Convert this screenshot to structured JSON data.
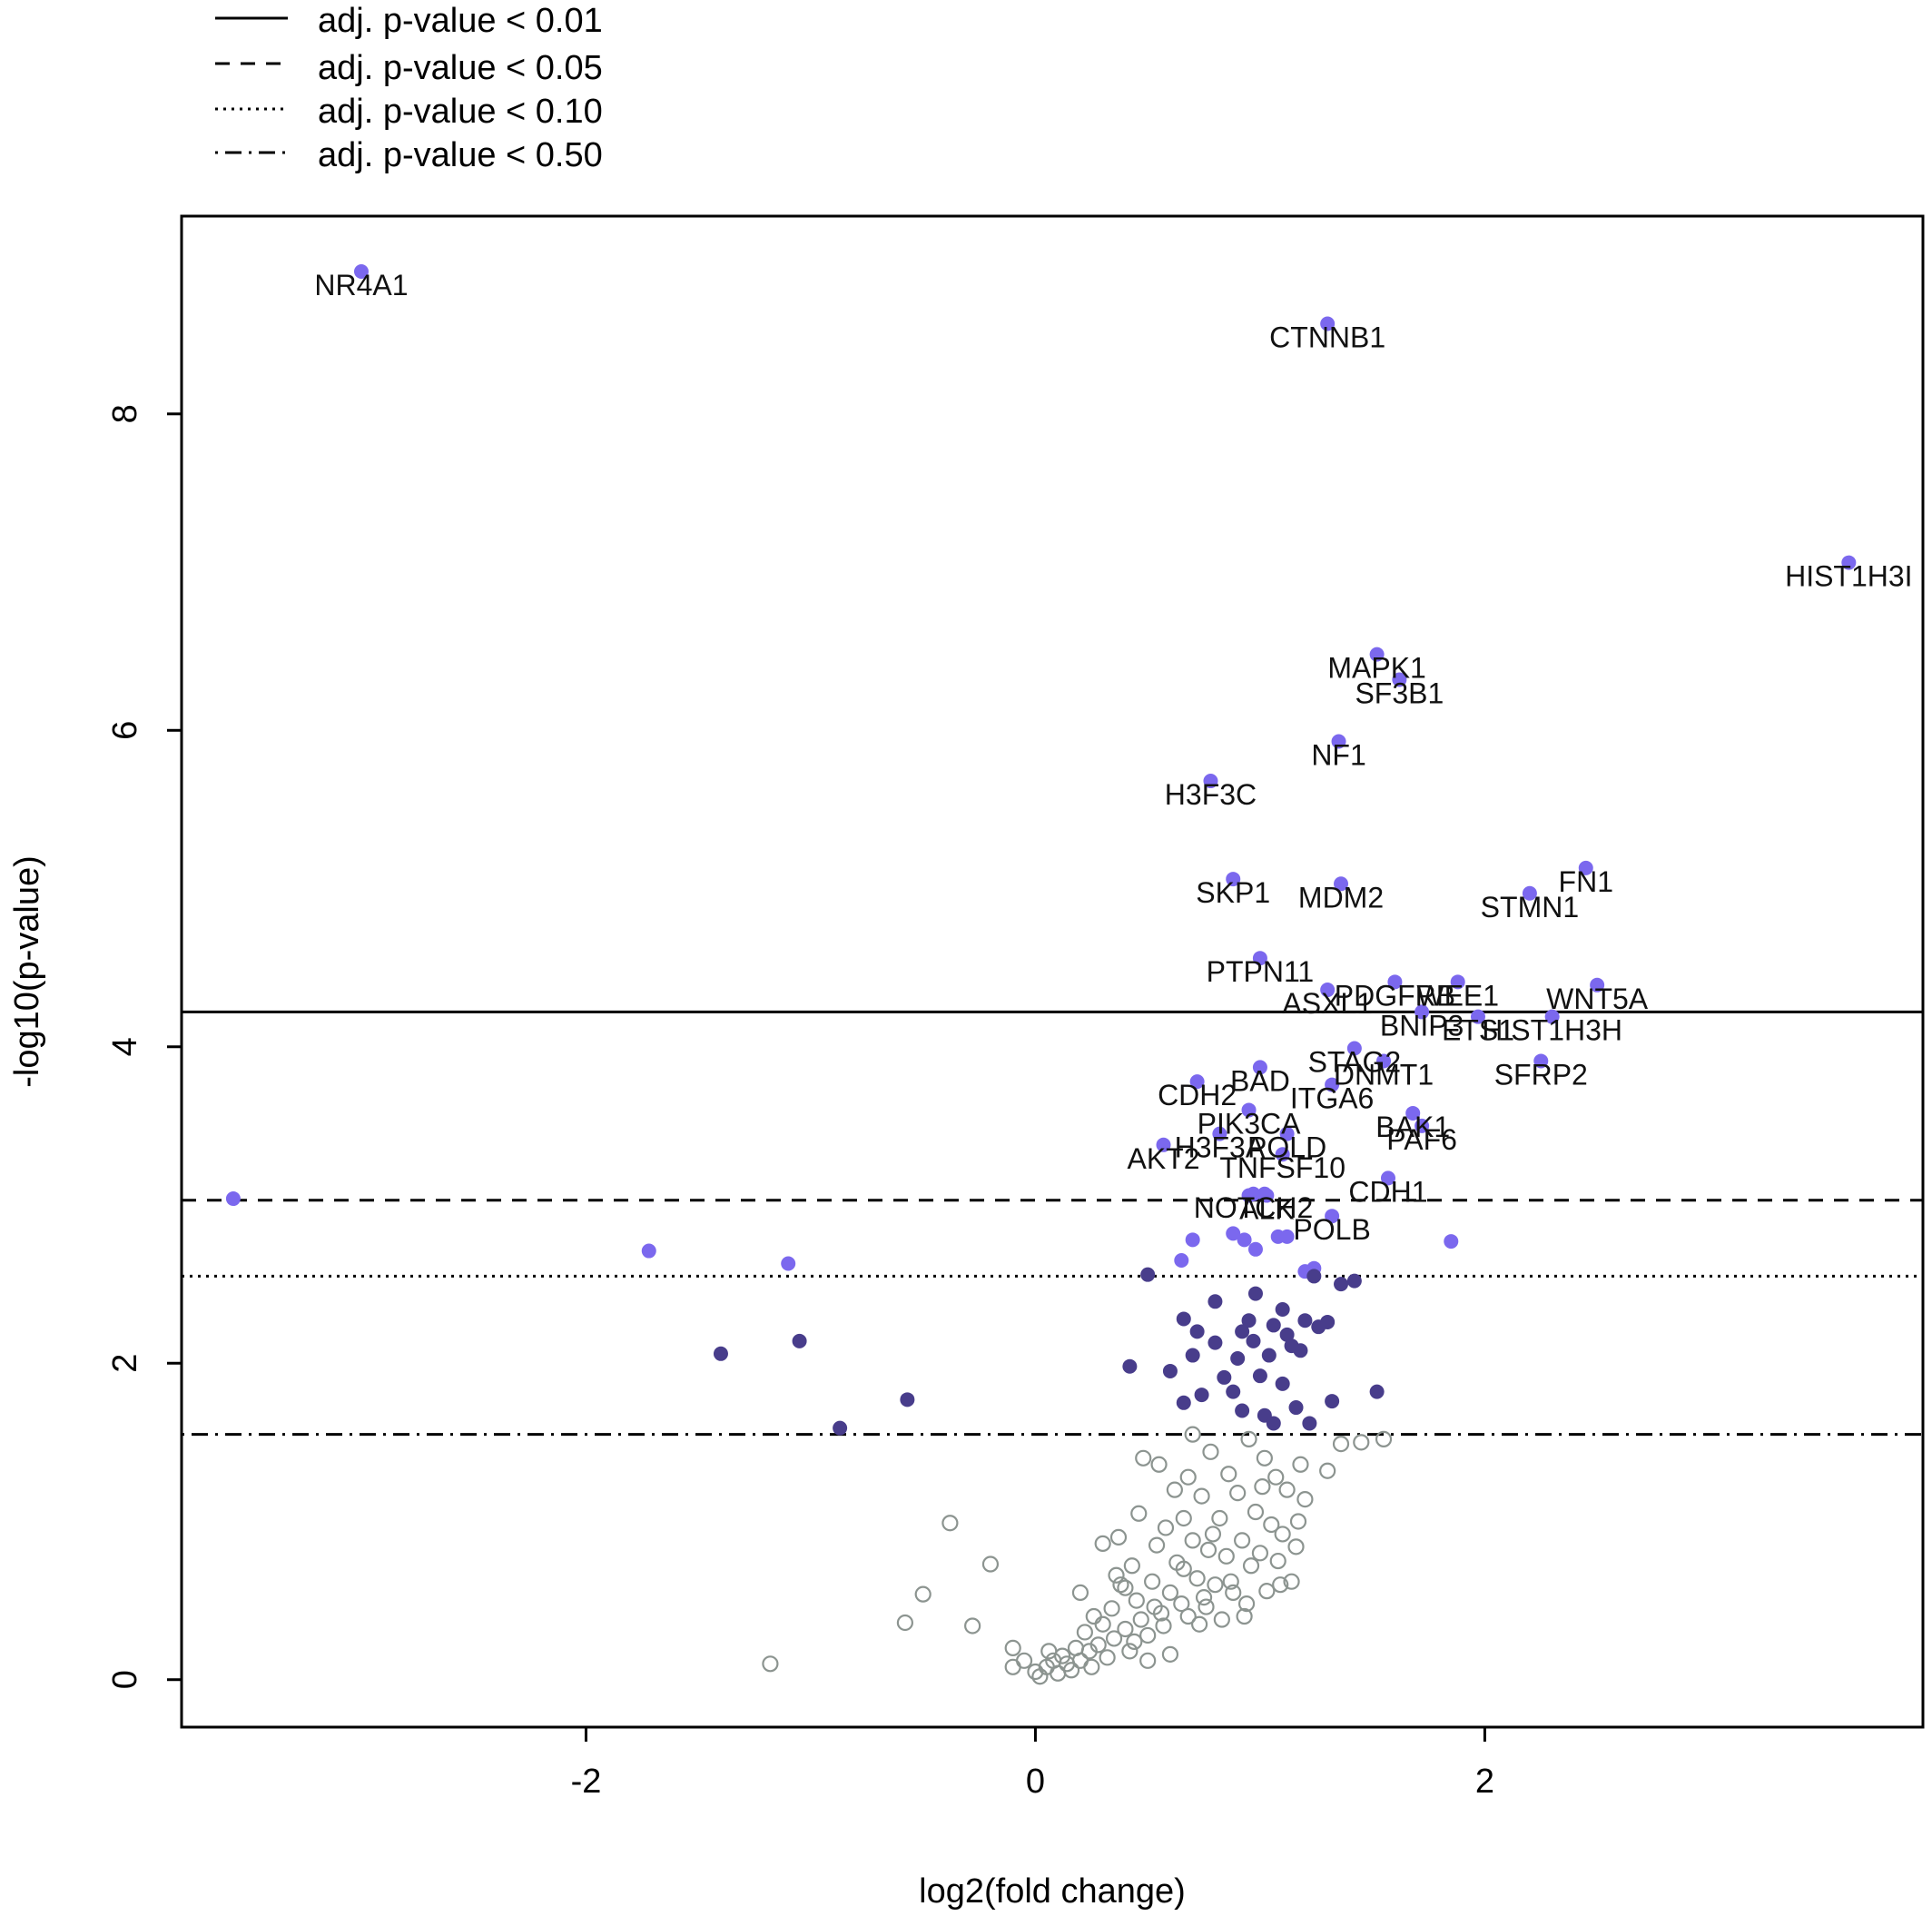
{
  "legend": [
    {
      "label": "adj. p-value < 0.01",
      "dash": "solid"
    },
    {
      "label": "adj. p-value < 0.05",
      "dash": "dashed"
    },
    {
      "label": "adj. p-value < 0.10",
      "dash": "dotted"
    },
    {
      "label": "adj. p-value < 0.50",
      "dash": "dotdash"
    }
  ],
  "colors": {
    "significant": "#7b68ee",
    "moderate": "#483d8b",
    "nonsignificant": "#8c9490",
    "axis": "#000000"
  },
  "chart_data": {
    "type": "scatter",
    "title": "",
    "xlabel": "log2(fold change)",
    "ylabel": "-log10(p-value)",
    "xlim": [
      -3.8,
      3.95
    ],
    "ylim": [
      -0.3,
      9.25
    ],
    "xticks": [
      -2,
      0,
      2
    ],
    "yticks": [
      0,
      2,
      4,
      6,
      8
    ],
    "grid": false,
    "legend_position": "top-left",
    "threshold_lines": [
      {
        "label": "adj. p-value < 0.01",
        "y": 4.22,
        "dash": "solid"
      },
      {
        "label": "adj. p-value < 0.05",
        "y": 3.03,
        "dash": "dashed"
      },
      {
        "label": "adj. p-value < 0.10",
        "y": 2.55,
        "dash": "dotted"
      },
      {
        "label": "adj. p-value < 0.50",
        "y": 1.55,
        "dash": "dotdash"
      }
    ],
    "labeled_points": [
      {
        "gene": "NR4A1",
        "x": -3.0,
        "y": 8.9
      },
      {
        "gene": "CTNNB1",
        "x": 1.3,
        "y": 8.57
      },
      {
        "gene": "HIST1H3I",
        "x": 3.62,
        "y": 7.06
      },
      {
        "gene": "MAPK1",
        "x": 1.52,
        "y": 6.48
      },
      {
        "gene": "SF3B1",
        "x": 1.62,
        "y": 6.32
      },
      {
        "gene": "NF1",
        "x": 1.35,
        "y": 5.93
      },
      {
        "gene": "H3F3C",
        "x": 0.78,
        "y": 5.68
      },
      {
        "gene": "FN1",
        "x": 2.45,
        "y": 5.13
      },
      {
        "gene": "SKP1",
        "x": 0.88,
        "y": 5.06
      },
      {
        "gene": "MDM2",
        "x": 1.36,
        "y": 5.03
      },
      {
        "gene": "STMN1",
        "x": 2.2,
        "y": 4.97
      },
      {
        "gene": "PTPN11",
        "x": 1.0,
        "y": 4.56
      },
      {
        "gene": "PDGFRB",
        "x": 1.6,
        "y": 4.41
      },
      {
        "gene": "WEE1",
        "x": 1.88,
        "y": 4.41
      },
      {
        "gene": "WNT5A",
        "x": 2.5,
        "y": 4.39
      },
      {
        "gene": "ASXL1",
        "x": 1.3,
        "y": 4.36
      },
      {
        "gene": "BNIP3",
        "x": 1.72,
        "y": 4.22
      },
      {
        "gene": "ETS1",
        "x": 1.97,
        "y": 4.19
      },
      {
        "gene": "HIST1H3H",
        "x": 2.3,
        "y": 4.19
      },
      {
        "gene": "STAG2",
        "x": 1.42,
        "y": 3.99
      },
      {
        "gene": "DNMT1",
        "x": 1.55,
        "y": 3.91
      },
      {
        "gene": "SFRP2",
        "x": 2.25,
        "y": 3.91
      },
      {
        "gene": "BAD",
        "x": 1.0,
        "y": 3.87
      },
      {
        "gene": "ITGA6",
        "x": 1.32,
        "y": 3.76
      },
      {
        "gene": "CDH2",
        "x": 0.72,
        "y": 3.78
      },
      {
        "gene": "PIK3CA",
        "x": 0.95,
        "y": 3.6
      },
      {
        "gene": "BAK1",
        "x": 1.68,
        "y": 3.58
      },
      {
        "gene": "PAF6",
        "x": 1.72,
        "y": 3.5
      },
      {
        "gene": "H3F3A",
        "x": 0.82,
        "y": 3.45
      },
      {
        "gene": "POLD",
        "x": 1.12,
        "y": 3.45
      },
      {
        "gene": "AKT2",
        "x": 0.57,
        "y": 3.38
      },
      {
        "gene": "TNFSF10",
        "x": 1.1,
        "y": 3.32
      },
      {
        "gene": "CDH1",
        "x": 1.57,
        "y": 3.17
      },
      {
        "gene": "NOTCH2",
        "x": 0.97,
        "y": 3.07
      },
      {
        "gene": "ALK",
        "x": 1.03,
        "y": 3.06
      },
      {
        "gene": "POLB",
        "x": 1.32,
        "y": 2.93
      }
    ],
    "label_texts": [
      "NR4A1",
      "CTNNB1",
      "HIST1H3I",
      "MAPK1",
      "SF3B1",
      "NF1",
      "H3F3C",
      "FN1",
      "SKP1",
      "MDM2",
      "STMN1",
      "PTPN11",
      "PDGFRB",
      "WEE1",
      "WNT5A",
      "ASXL1",
      "BNIP3",
      "ETS1",
      "HIST1H3H",
      "STAG2",
      "DNMT1",
      "SFRP2",
      "BAD",
      "ITGA6",
      "CDH2",
      "PIK3CA",
      "BAK1",
      "PAF6",
      "H3F3A",
      "POLD",
      "AKT2",
      "TNFSF10",
      "CDH1",
      "NOTCH2",
      "ALK",
      "POLB"
    ],
    "series": [
      {
        "group": "significant",
        "points": [
          [
            -3.57,
            3.04
          ],
          [
            -1.72,
            2.71
          ],
          [
            -1.1,
            2.63
          ],
          [
            0.7,
            2.78
          ],
          [
            0.65,
            2.65
          ],
          [
            0.88,
            2.82
          ],
          [
            0.93,
            2.78
          ],
          [
            0.98,
            2.72
          ],
          [
            1.08,
            2.8
          ],
          [
            1.12,
            2.8
          ],
          [
            1.2,
            2.58
          ],
          [
            1.24,
            2.6
          ],
          [
            1.85,
            2.77
          ],
          [
            0.95,
            3.06
          ],
          [
            1.02,
            3.07
          ]
        ]
      },
      {
        "group": "moderate",
        "points": [
          [
            -1.4,
            2.06
          ],
          [
            -1.05,
            2.14
          ],
          [
            -0.57,
            1.77
          ],
          [
            -0.87,
            1.59
          ],
          [
            0.42,
            1.98
          ],
          [
            0.5,
            2.56
          ],
          [
            0.6,
            1.95
          ],
          [
            0.66,
            1.75
          ],
          [
            0.66,
            2.28
          ],
          [
            0.72,
            2.2
          ],
          [
            0.74,
            1.8
          ],
          [
            0.8,
            2.39
          ],
          [
            0.8,
            2.13
          ],
          [
            0.84,
            1.91
          ],
          [
            0.88,
            1.82
          ],
          [
            0.9,
            2.03
          ],
          [
            0.92,
            2.2
          ],
          [
            0.95,
            2.27
          ],
          [
            0.97,
            2.14
          ],
          [
            0.98,
            2.44
          ],
          [
            1.0,
            1.92
          ],
          [
            1.02,
            1.67
          ],
          [
            1.04,
            2.05
          ],
          [
            1.06,
            2.24
          ],
          [
            1.1,
            2.34
          ],
          [
            1.1,
            1.87
          ],
          [
            1.12,
            2.18
          ],
          [
            1.16,
            1.72
          ],
          [
            1.18,
            2.08
          ],
          [
            1.2,
            2.27
          ],
          [
            1.22,
            1.62
          ],
          [
            1.26,
            2.23
          ],
          [
            1.3,
            2.26
          ],
          [
            1.32,
            1.76
          ],
          [
            1.36,
            2.5
          ],
          [
            1.42,
            2.52
          ],
          [
            1.52,
            1.82
          ],
          [
            1.14,
            2.11
          ],
          [
            0.7,
            2.05
          ],
          [
            0.92,
            1.7
          ],
          [
            1.24,
            2.55
          ],
          [
            1.06,
            1.62
          ]
        ]
      },
      {
        "group": "nonsignificant",
        "points": [
          [
            -1.18,
            0.1
          ],
          [
            -0.58,
            0.36
          ],
          [
            -0.5,
            0.54
          ],
          [
            -0.38,
            0.99
          ],
          [
            -0.28,
            0.34
          ],
          [
            -0.2,
            0.73
          ],
          [
            -0.1,
            0.2
          ],
          [
            -0.05,
            0.12
          ],
          [
            0.0,
            0.05
          ],
          [
            0.02,
            0.02
          ],
          [
            0.05,
            0.08
          ],
          [
            0.08,
            0.12
          ],
          [
            0.1,
            0.04
          ],
          [
            0.12,
            0.15
          ],
          [
            0.14,
            0.1
          ],
          [
            0.16,
            0.06
          ],
          [
            0.18,
            0.2
          ],
          [
            0.2,
            0.12
          ],
          [
            0.2,
            0.55
          ],
          [
            0.22,
            0.3
          ],
          [
            0.24,
            0.18
          ],
          [
            0.25,
            0.08
          ],
          [
            0.28,
            0.22
          ],
          [
            0.3,
            0.35
          ],
          [
            0.3,
            0.86
          ],
          [
            0.32,
            0.14
          ],
          [
            0.34,
            0.45
          ],
          [
            0.35,
            0.26
          ],
          [
            0.37,
            0.9
          ],
          [
            0.38,
            0.6
          ],
          [
            0.4,
            0.32
          ],
          [
            0.42,
            0.18
          ],
          [
            0.43,
            0.72
          ],
          [
            0.45,
            0.5
          ],
          [
            0.46,
            1.05
          ],
          [
            0.47,
            0.38
          ],
          [
            0.48,
            1.4
          ],
          [
            0.5,
            0.28
          ],
          [
            0.52,
            0.62
          ],
          [
            0.54,
            0.85
          ],
          [
            0.55,
            1.36
          ],
          [
            0.56,
            0.42
          ],
          [
            0.58,
            0.96
          ],
          [
            0.6,
            0.55
          ],
          [
            0.62,
            1.2
          ],
          [
            0.63,
            0.74
          ],
          [
            0.65,
            0.48
          ],
          [
            0.66,
            1.02
          ],
          [
            0.68,
            0.4
          ],
          [
            0.7,
            0.88
          ],
          [
            0.7,
            1.55
          ],
          [
            0.72,
            0.64
          ],
          [
            0.74,
            1.16
          ],
          [
            0.75,
            0.52
          ],
          [
            0.77,
            0.82
          ],
          [
            0.78,
            1.44
          ],
          [
            0.8,
            0.6
          ],
          [
            0.82,
            1.02
          ],
          [
            0.83,
            0.38
          ],
          [
            0.85,
            0.78
          ],
          [
            0.86,
            1.3
          ],
          [
            0.88,
            0.55
          ],
          [
            0.9,
            1.18
          ],
          [
            0.92,
            0.88
          ],
          [
            0.93,
            0.4
          ],
          [
            0.95,
            1.52
          ],
          [
            0.96,
            0.72
          ],
          [
            0.98,
            1.06
          ],
          [
            1.0,
            0.8
          ],
          [
            1.02,
            1.4
          ],
          [
            1.03,
            0.56
          ],
          [
            1.05,
            0.98
          ],
          [
            1.07,
            1.28
          ],
          [
            1.08,
            0.75
          ],
          [
            1.1,
            0.92
          ],
          [
            1.12,
            1.2
          ],
          [
            1.14,
            0.62
          ],
          [
            1.16,
            0.84
          ],
          [
            1.18,
            1.36
          ],
          [
            1.2,
            1.14
          ],
          [
            1.3,
            1.32
          ],
          [
            1.36,
            1.49
          ],
          [
            1.45,
            1.5
          ],
          [
            1.55,
            1.52
          ],
          [
            -0.1,
            0.08
          ],
          [
            0.06,
            0.18
          ],
          [
            0.26,
            0.4
          ],
          [
            0.36,
            0.66
          ],
          [
            0.44,
            0.24
          ],
          [
            0.53,
            0.46
          ],
          [
            0.6,
            0.16
          ],
          [
            0.66,
            0.7
          ],
          [
            0.73,
            0.35
          ],
          [
            0.79,
            0.92
          ],
          [
            0.87,
            0.62
          ],
          [
            0.94,
            0.48
          ],
          [
            1.01,
            1.22
          ],
          [
            1.09,
            0.6
          ],
          [
            1.17,
            1.0
          ],
          [
            0.5,
            0.12
          ],
          [
            0.4,
            0.58
          ],
          [
            0.57,
            0.34
          ],
          [
            0.68,
            1.28
          ],
          [
            0.76,
            0.46
          ]
        ]
      }
    ]
  }
}
